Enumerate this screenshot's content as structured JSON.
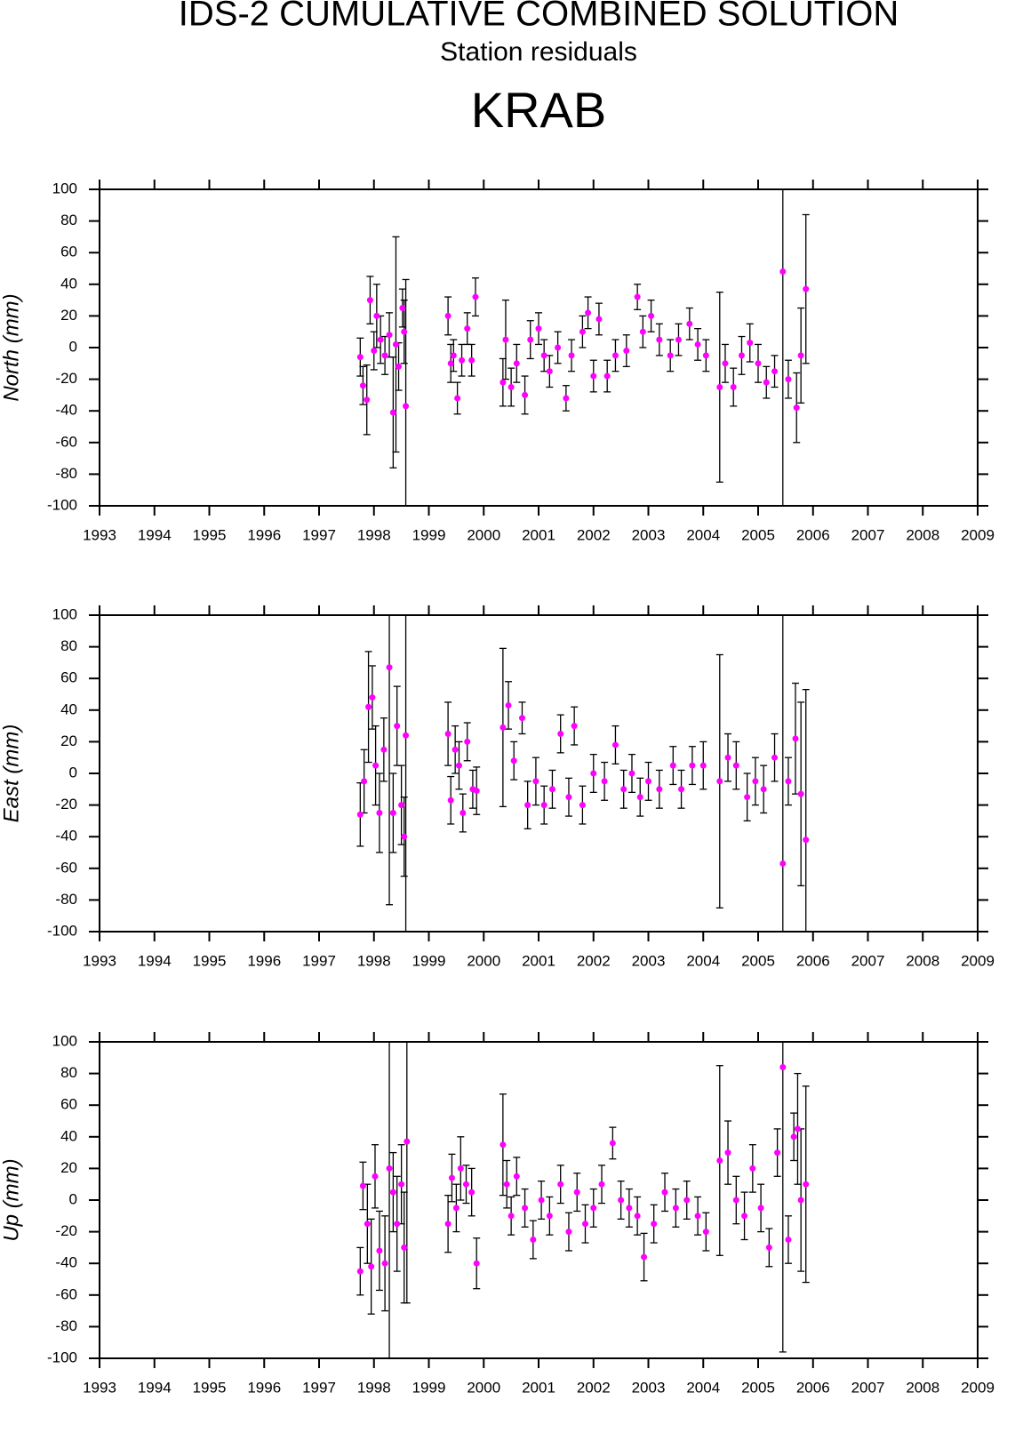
{
  "header": {
    "title": "IDS-2 CUMULATIVE COMBINED SOLUTION",
    "subtitle": "Station residuals",
    "station": "KRAB"
  },
  "chart_data": [
    {
      "type": "scatter",
      "ylabel": "North (mm)",
      "color": "#ff00ff",
      "errorbar_color": "#000000",
      "xlim": [
        1993,
        2009
      ],
      "xticks": [
        1993,
        1994,
        1995,
        1996,
        1997,
        1998,
        1999,
        2000,
        2001,
        2002,
        2003,
        2004,
        2005,
        2006,
        2007,
        2008,
        2009
      ],
      "ylim": [
        -100,
        100
      ],
      "yticks": [
        -100,
        -80,
        -60,
        -40,
        -20,
        0,
        20,
        40,
        60,
        80,
        100
      ],
      "x": [
        1997.75,
        1997.8,
        1997.87,
        1997.93,
        1998.0,
        1998.05,
        1998.12,
        1998.2,
        1998.28,
        1998.35,
        1998.4,
        1998.45,
        1998.52,
        1998.55,
        1998.58,
        1999.35,
        1999.4,
        1999.45,
        1999.52,
        1999.6,
        1999.7,
        1999.78,
        1999.85,
        2000.35,
        2000.4,
        2000.5,
        2000.6,
        2000.75,
        2000.85,
        2001.0,
        2001.1,
        2001.2,
        2001.35,
        2001.5,
        2001.6,
        2001.8,
        2001.9,
        2002.0,
        2002.1,
        2002.25,
        2002.4,
        2002.6,
        2002.8,
        2002.9,
        2003.05,
        2003.2,
        2003.4,
        2003.55,
        2003.75,
        2003.9,
        2004.05,
        2004.3,
        2004.4,
        2004.55,
        2004.7,
        2004.85,
        2005.0,
        2005.15,
        2005.3,
        2005.45,
        2005.55,
        2005.7,
        2005.78,
        2005.87
      ],
      "values": [
        -6,
        -24,
        -33,
        30,
        -2,
        20,
        5,
        -5,
        8,
        -41,
        2,
        -12,
        25,
        10,
        -37,
        20,
        -10,
        -5,
        -32,
        -8,
        12,
        -8,
        32,
        -22,
        5,
        -25,
        -10,
        -30,
        5,
        12,
        -5,
        -15,
        0,
        -32,
        -5,
        10,
        22,
        -18,
        18,
        -18,
        -5,
        -2,
        32,
        10,
        20,
        5,
        -5,
        5,
        15,
        2,
        -5,
        -25,
        -10,
        -25,
        -5,
        3,
        -10,
        -22,
        -15,
        48,
        -20,
        -38,
        -5,
        37
      ],
      "errors": [
        12,
        12,
        22,
        15,
        12,
        20,
        15,
        12,
        14,
        35,
        68,
        15,
        12,
        20,
        80,
        12,
        12,
        10,
        10,
        10,
        10,
        10,
        12,
        15,
        25,
        12,
        12,
        12,
        12,
        10,
        10,
        10,
        10,
        8,
        10,
        10,
        10,
        10,
        10,
        10,
        10,
        10,
        8,
        10,
        10,
        10,
        10,
        10,
        10,
        10,
        10,
        60,
        12,
        12,
        12,
        12,
        12,
        10,
        10,
        160,
        12,
        22,
        30,
        47
      ]
    },
    {
      "type": "scatter",
      "ylabel": "East (mm)",
      "color": "#ff00ff",
      "errorbar_color": "#000000",
      "xlim": [
        1993,
        2009
      ],
      "xticks": [
        1993,
        1994,
        1995,
        1996,
        1997,
        1998,
        1999,
        2000,
        2001,
        2002,
        2003,
        2004,
        2005,
        2006,
        2007,
        2008,
        2009
      ],
      "ylim": [
        -100,
        100
      ],
      "yticks": [
        -100,
        -80,
        -60,
        -40,
        -20,
        0,
        20,
        40,
        60,
        80,
        100
      ],
      "x": [
        1997.75,
        1997.82,
        1997.9,
        1997.97,
        1998.03,
        1998.1,
        1998.18,
        1998.28,
        1998.35,
        1998.42,
        1998.5,
        1998.55,
        1998.58,
        1999.35,
        1999.4,
        1999.48,
        1999.55,
        1999.62,
        1999.7,
        1999.8,
        1999.87,
        2000.35,
        2000.45,
        2000.55,
        2000.7,
        2000.8,
        2000.95,
        2001.1,
        2001.25,
        2001.4,
        2001.55,
        2001.65,
        2001.8,
        2002.0,
        2002.2,
        2002.4,
        2002.55,
        2002.7,
        2002.85,
        2003.0,
        2003.2,
        2003.45,
        2003.6,
        2003.8,
        2004.0,
        2004.3,
        2004.45,
        2004.6,
        2004.8,
        2004.95,
        2005.1,
        2005.3,
        2005.45,
        2005.55,
        2005.68,
        2005.78,
        2005.87
      ],
      "values": [
        -26,
        -5,
        42,
        48,
        5,
        -25,
        15,
        67,
        -25,
        30,
        -20,
        -40,
        24,
        25,
        -17,
        15,
        5,
        -25,
        20,
        -10,
        -11,
        29,
        43,
        8,
        35,
        -20,
        -5,
        -20,
        -10,
        25,
        -15,
        30,
        -20,
        0,
        -5,
        18,
        -10,
        0,
        -15,
        -5,
        -10,
        5,
        -10,
        5,
        5,
        -5,
        10,
        5,
        -15,
        -5,
        -10,
        10,
        -57,
        -5,
        22,
        -13,
        -42
      ],
      "errors": [
        20,
        20,
        35,
        20,
        25,
        25,
        20,
        150,
        25,
        25,
        25,
        25,
        130,
        20,
        15,
        15,
        15,
        12,
        12,
        12,
        15,
        50,
        15,
        12,
        10,
        15,
        15,
        12,
        12,
        12,
        12,
        12,
        12,
        12,
        12,
        12,
        12,
        12,
        12,
        12,
        12,
        12,
        12,
        12,
        15,
        80,
        15,
        15,
        15,
        15,
        15,
        15,
        160,
        15,
        35,
        58,
        95
      ]
    },
    {
      "type": "scatter",
      "ylabel": "Up (mm)",
      "color": "#ff00ff",
      "errorbar_color": "#000000",
      "xlim": [
        1993,
        2009
      ],
      "xticks": [
        1993,
        1994,
        1995,
        1996,
        1997,
        1998,
        1999,
        2000,
        2001,
        2002,
        2003,
        2004,
        2005,
        2006,
        2007,
        2008,
        2009
      ],
      "ylim": [
        -100,
        100
      ],
      "yticks": [
        -100,
        -80,
        -60,
        -40,
        -20,
        0,
        20,
        40,
        60,
        80,
        100
      ],
      "x": [
        1997.75,
        1997.8,
        1997.88,
        1997.95,
        1998.02,
        1998.1,
        1998.2,
        1998.28,
        1998.35,
        1998.42,
        1998.5,
        1998.55,
        1998.6,
        1999.35,
        1999.42,
        1999.5,
        1999.58,
        1999.68,
        1999.78,
        1999.87,
        2000.35,
        2000.42,
        2000.5,
        2000.6,
        2000.75,
        2000.9,
        2001.05,
        2001.2,
        2001.4,
        2001.55,
        2001.7,
        2001.85,
        2002.0,
        2002.15,
        2002.35,
        2002.5,
        2002.65,
        2002.8,
        2002.92,
        2003.1,
        2003.3,
        2003.5,
        2003.7,
        2003.9,
        2004.05,
        2004.3,
        2004.45,
        2004.6,
        2004.75,
        2004.9,
        2005.05,
        2005.2,
        2005.35,
        2005.45,
        2005.55,
        2005.65,
        2005.72,
        2005.78,
        2005.87
      ],
      "values": [
        -45,
        9,
        -15,
        -42,
        15,
        -32,
        -40,
        20,
        5,
        -15,
        10,
        -30,
        37,
        -15,
        14,
        -5,
        20,
        10,
        5,
        -40,
        35,
        10,
        -10,
        15,
        -5,
        -25,
        0,
        -10,
        10,
        -20,
        5,
        -15,
        -5,
        10,
        36,
        0,
        -5,
        -10,
        -36,
        -15,
        5,
        -5,
        0,
        -10,
        -20,
        25,
        30,
        0,
        -10,
        20,
        -5,
        -30,
        30,
        84,
        -25,
        40,
        45,
        0,
        10
      ],
      "errors": [
        15,
        15,
        25,
        30,
        20,
        25,
        30,
        200,
        25,
        30,
        25,
        35,
        102,
        18,
        15,
        15,
        20,
        12,
        15,
        16,
        32,
        15,
        12,
        12,
        12,
        12,
        12,
        12,
        12,
        12,
        12,
        12,
        12,
        12,
        10,
        12,
        12,
        12,
        15,
        12,
        12,
        12,
        12,
        12,
        12,
        60,
        20,
        15,
        15,
        15,
        15,
        12,
        15,
        180,
        15,
        15,
        35,
        45,
        62
      ]
    }
  ]
}
